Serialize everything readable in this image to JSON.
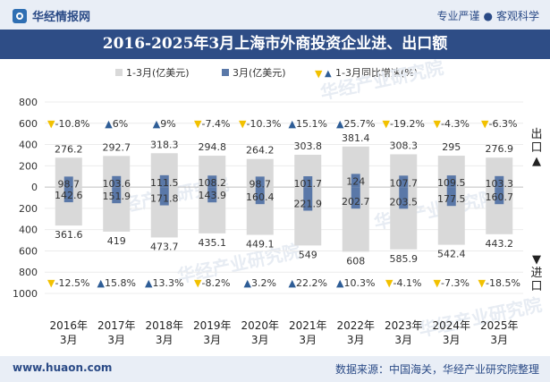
{
  "header": {
    "brand": "华经情报网",
    "tag1": "专业严谨",
    "tag2": "客观科学"
  },
  "title": "2016-2025年3月上海市外商投资企业进、出口额",
  "footer": {
    "site": "www.huaon.com",
    "source": "数据来源：中国海关，华经产业研究院整理"
  },
  "side": {
    "export": "出口▲",
    "import": "▼进口"
  },
  "legend": {
    "s1": "1-3月(亿美元)",
    "s2": "3月(亿美元)",
    "s3": "1-3月同比增速(%)"
  },
  "colors": {
    "cum": "#d9d9d9",
    "month": "#5a78a8",
    "up": "#2e5d96",
    "down": "#f2c100"
  },
  "watermark": "华经产业研究院",
  "chart_data": {
    "type": "bar",
    "categories": [
      "2016年3月",
      "2017年3月",
      "2018年3月",
      "2019年3月",
      "2020年3月",
      "2021年3月",
      "2022年3月",
      "2023年3月",
      "2024年3月",
      "2025年3月"
    ],
    "ylim": [
      -1000,
      800
    ],
    "yticks": [
      -1000,
      -800,
      -600,
      -400,
      -200,
      0,
      200,
      400,
      600,
      800
    ],
    "ytick_labels": [
      "1000",
      "800",
      "600",
      "400",
      "200",
      "0",
      "200",
      "400",
      "600",
      "800"
    ],
    "series": [
      {
        "name": "1-3月(亿美元)",
        "role": "export",
        "values": [
          276.2,
          292.7,
          318.3,
          294.8,
          264.2,
          303.8,
          381.4,
          308.3,
          295,
          276.9
        ]
      },
      {
        "name": "3月(亿美元)",
        "role": "export",
        "values": [
          98.7,
          103.6,
          111.5,
          108.2,
          98.7,
          101.7,
          124,
          107.7,
          109.5,
          103.3
        ]
      },
      {
        "name": "1-3月(亿美元)",
        "role": "import",
        "values": [
          361.6,
          419,
          473.7,
          435.1,
          449.1,
          549,
          608,
          585.9,
          542.4,
          443.2
        ]
      },
      {
        "name": "3月(亿美元)",
        "role": "import",
        "values": [
          142.6,
          151.9,
          171.8,
          143.9,
          160.4,
          221.9,
          202.7,
          203.5,
          177.5,
          160.7
        ]
      }
    ],
    "growth_export": [
      "-10.8%",
      "6%",
      "9%",
      "-7.4%",
      "-10.3%",
      "15.1%",
      "25.7%",
      "-19.2%",
      "-4.3%",
      "-6.3%"
    ],
    "growth_import": [
      "-12.5%",
      "15.8%",
      "13.3%",
      "-8.2%",
      "3.2%",
      "22.2%",
      "10.3%",
      "-4.1%",
      "-7.3%",
      "-18.5%"
    ]
  }
}
